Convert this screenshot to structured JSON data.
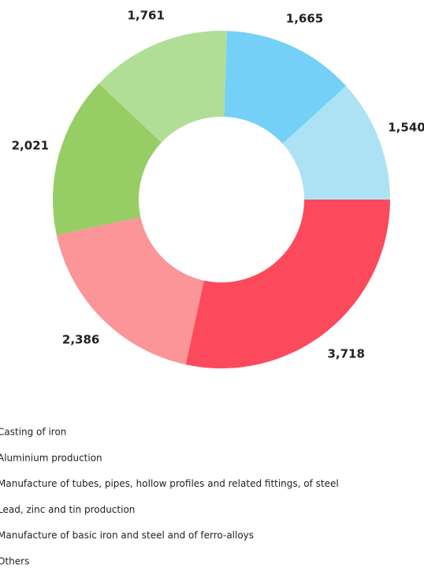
{
  "chart_data": {
    "type": "pie",
    "categories": [
      "Casting of iron",
      "Aluminium production",
      "Manufacture of tubes, pipes, hollow profiles and related fittings, of steel",
      "Lead, zinc and tin production",
      "Manufacture of basic iron and steel and of ferro-alloys",
      "Others"
    ],
    "values": [
      3718,
      2386,
      2021,
      1761,
      1665,
      1540
    ],
    "value_labels": [
      "3,718",
      "2,386",
      "2,021",
      "1,761",
      "1,665",
      "1,540"
    ],
    "colors": [
      "#fc4a5c",
      "#fc9597",
      "#96cd64",
      "#b1de96",
      "#74d0f7",
      "#ade2f4"
    ]
  }
}
